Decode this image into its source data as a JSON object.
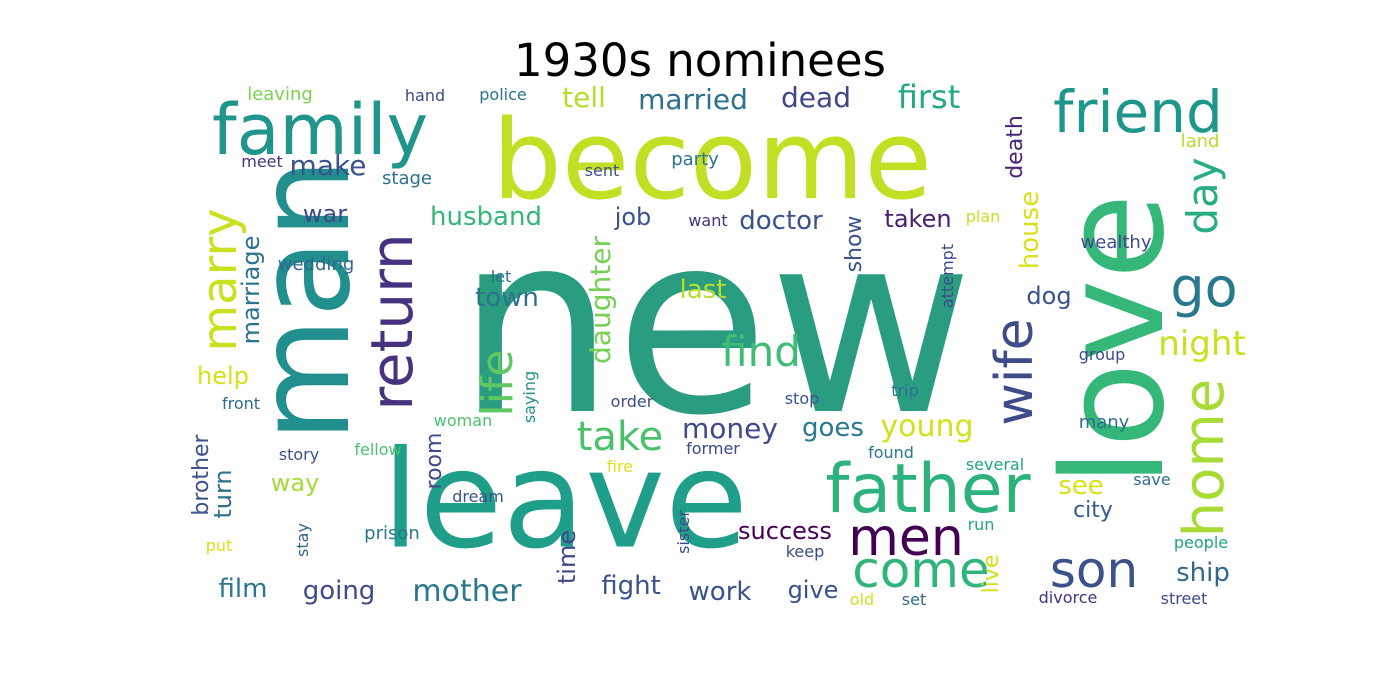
{
  "title": "1930s nominees",
  "words": [
    {
      "text": "new",
      "color": "#2a9d80"
    },
    {
      "text": "become",
      "color": "#c2df23"
    },
    {
      "text": "leave",
      "color": "#1f9e89"
    },
    {
      "text": "love",
      "color": "#35b779"
    },
    {
      "text": "man",
      "color": "#218f8d"
    },
    {
      "text": "family",
      "color": "#1f958b"
    },
    {
      "text": "friend",
      "color": "#1f968b"
    },
    {
      "text": "return",
      "color": "#46327e"
    },
    {
      "text": "father",
      "color": "#2db27d"
    },
    {
      "text": "men",
      "color": "#440154"
    },
    {
      "text": "come",
      "color": "#2fb47c"
    },
    {
      "text": "son",
      "color": "#3b528b"
    },
    {
      "text": "home",
      "color": "#a8db34"
    },
    {
      "text": "wife",
      "color": "#3e4a89"
    },
    {
      "text": "go",
      "color": "#2a788e"
    },
    {
      "text": "day",
      "color": "#27ad81"
    },
    {
      "text": "marry",
      "color": "#cae11f"
    },
    {
      "text": "life",
      "color": "#5ec962"
    },
    {
      "text": "take",
      "color": "#4ac16d"
    },
    {
      "text": "find",
      "color": "#3dbc74"
    },
    {
      "text": "night",
      "color": "#c8e020"
    },
    {
      "text": "first",
      "color": "#22a884"
    },
    {
      "text": "dead",
      "color": "#3f4788"
    },
    {
      "text": "married",
      "color": "#2c728e"
    },
    {
      "text": "tell",
      "color": "#b5de2b"
    },
    {
      "text": "make",
      "color": "#3b528b"
    },
    {
      "text": "death",
      "color": "#482576"
    },
    {
      "text": "house",
      "color": "#d8e219"
    },
    {
      "text": "marriage",
      "color": "#2c728e"
    },
    {
      "text": "daughter",
      "color": "#75d054"
    },
    {
      "text": "husband",
      "color": "#35b779"
    },
    {
      "text": "job",
      "color": "#3b528b"
    },
    {
      "text": "doctor",
      "color": "#3b528b"
    },
    {
      "text": "taken",
      "color": "#481f70"
    },
    {
      "text": "show",
      "color": "#3b528b"
    },
    {
      "text": "war",
      "color": "#3e4a89"
    },
    {
      "text": "town",
      "color": "#2c728e"
    },
    {
      "text": "last",
      "color": "#b8de29"
    },
    {
      "text": "dog",
      "color": "#3b528b"
    },
    {
      "text": "help",
      "color": "#d2e21b"
    },
    {
      "text": "money",
      "color": "#3e4a89"
    },
    {
      "text": "goes",
      "color": "#2a788e"
    },
    {
      "text": "young",
      "color": "#d2e21b"
    },
    {
      "text": "see",
      "color": "#d8e219"
    },
    {
      "text": "city",
      "color": "#365c8d"
    },
    {
      "text": "room",
      "color": "#3e4a89"
    },
    {
      "text": "way",
      "color": "#a5db36"
    },
    {
      "text": "turn",
      "color": "#2c728e"
    },
    {
      "text": "brother",
      "color": "#3b528b"
    },
    {
      "text": "film",
      "color": "#2a788e"
    },
    {
      "text": "going",
      "color": "#3e4a89"
    },
    {
      "text": "mother",
      "color": "#2a788e"
    },
    {
      "text": "time",
      "color": "#3e4a89"
    },
    {
      "text": "fight",
      "color": "#3b528b"
    },
    {
      "text": "work",
      "color": "#3b528b"
    },
    {
      "text": "give",
      "color": "#3b528b"
    },
    {
      "text": "success",
      "color": "#440154"
    },
    {
      "text": "ship",
      "color": "#31688e"
    },
    {
      "text": "live",
      "color": "#d0e11c"
    },
    {
      "text": "wedding",
      "color": "#31688e"
    },
    {
      "text": "wealthy",
      "color": "#3e4a89"
    },
    {
      "text": "leaving",
      "color": "#7ad151"
    },
    {
      "text": "hand",
      "color": "#3e4a89"
    },
    {
      "text": "police",
      "color": "#2c728e"
    },
    {
      "text": "meet",
      "color": "#46327e"
    },
    {
      "text": "stage",
      "color": "#2c728e"
    },
    {
      "text": "sent",
      "color": "#3b528b"
    },
    {
      "text": "party",
      "color": "#2c728e"
    },
    {
      "text": "want",
      "color": "#46327e"
    },
    {
      "text": "plan",
      "color": "#c8e020"
    },
    {
      "text": "land",
      "color": "#b5de2b"
    },
    {
      "text": "attempt",
      "color": "#3e4a89"
    },
    {
      "text": "let",
      "color": "#2c728e"
    },
    {
      "text": "group",
      "color": "#3e4a89"
    },
    {
      "text": "saying",
      "color": "#21918c"
    },
    {
      "text": "front",
      "color": "#31688e"
    },
    {
      "text": "woman",
      "color": "#4ac16d"
    },
    {
      "text": "order",
      "color": "#3e4a89"
    },
    {
      "text": "stop",
      "color": "#3b528b"
    },
    {
      "text": "trip",
      "color": "#2c728e"
    },
    {
      "text": "many",
      "color": "#2c728e"
    },
    {
      "text": "story",
      "color": "#3b528b"
    },
    {
      "text": "fellow",
      "color": "#4ac16d"
    },
    {
      "text": "fire",
      "color": "#d8e219"
    },
    {
      "text": "former",
      "color": "#3e4a89"
    },
    {
      "text": "found",
      "color": "#2a788e"
    },
    {
      "text": "several",
      "color": "#20a386"
    },
    {
      "text": "save",
      "color": "#2c728e"
    },
    {
      "text": "dream",
      "color": "#3b528b"
    },
    {
      "text": "stay",
      "color": "#31688e"
    },
    {
      "text": "prison",
      "color": "#2a788e"
    },
    {
      "text": "sister",
      "color": "#3e4a89"
    },
    {
      "text": "keep",
      "color": "#3e4a89"
    },
    {
      "text": "run",
      "color": "#22a884"
    },
    {
      "text": "put",
      "color": "#d8e219"
    },
    {
      "text": "people",
      "color": "#20a386"
    },
    {
      "text": "old",
      "color": "#d0e11c"
    },
    {
      "text": "set",
      "color": "#31688e"
    },
    {
      "text": "divorce",
      "color": "#46327e"
    },
    {
      "text": "street",
      "color": "#3e4a89"
    }
  ]
}
